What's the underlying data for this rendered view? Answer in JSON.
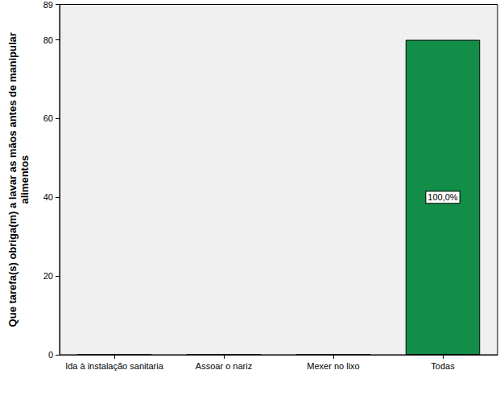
{
  "chart_data": {
    "type": "bar",
    "y_label": "Que tarefa(s) obriga(m) a lavar as mãos antes de manipular\nalimentos",
    "categories": [
      "Ida à instalação sanitaria",
      "Assoar o nariz",
      "Mexer no lixo",
      "Todas"
    ],
    "values": [
      0,
      0,
      0,
      80
    ],
    "color": "#138e48",
    "ylim": [
      0,
      89
    ],
    "yticks": [
      0,
      20,
      40,
      60,
      80
    ],
    "grid": false,
    "annotations": [
      {
        "category": "Todas",
        "text": "100,0%"
      }
    ]
  }
}
